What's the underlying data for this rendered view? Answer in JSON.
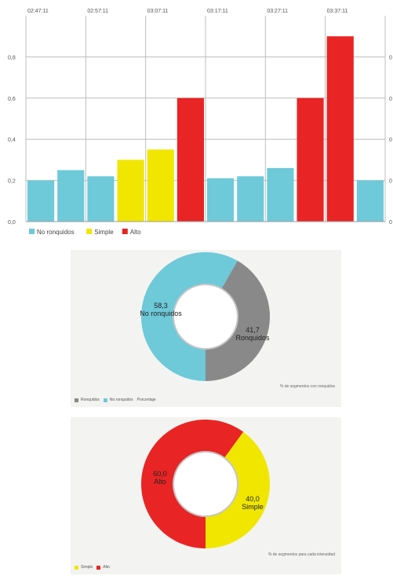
{
  "chart_data": [
    {
      "type": "bar",
      "time_labels": [
        "02:47:11",
        "02:57:11",
        "03:07:11",
        "03:17:11",
        "03:27:11",
        "03:37:11"
      ],
      "y_ticks": [
        "0,0",
        "0,2",
        "0,4",
        "0,6",
        "0,8"
      ],
      "ylim": [
        0,
        1
      ],
      "bars": [
        {
          "value": 0.2,
          "class": "No ronquidos"
        },
        {
          "value": 0.25,
          "class": "No ronquidos"
        },
        {
          "value": 0.22,
          "class": "No ronquidos"
        },
        {
          "value": 0.3,
          "class": "Simple"
        },
        {
          "value": 0.35,
          "class": "Simple"
        },
        {
          "value": 0.6,
          "class": "Alto"
        },
        {
          "value": 0.21,
          "class": "No ronquidos"
        },
        {
          "value": 0.22,
          "class": "No ronquidos"
        },
        {
          "value": 0.26,
          "class": "No ronquidos"
        },
        {
          "value": 0.6,
          "class": "Alto"
        },
        {
          "value": 0.9,
          "class": "Alto"
        },
        {
          "value": 0.2,
          "class": "No ronquidos"
        }
      ],
      "legend": [
        {
          "label": "No ronquidos",
          "color": "#6ec9d9"
        },
        {
          "label": "Simple",
          "color": "#f0e600"
        },
        {
          "label": "Alto",
          "color": "#e82424"
        }
      ],
      "grid": true,
      "legend_position": "bottom-left"
    },
    {
      "type": "pie",
      "variant": "donut",
      "slices": [
        {
          "name": "No ronquidos",
          "value": 58.3,
          "value_label": "58,3",
          "color": "#6ec9d9"
        },
        {
          "name": "Ronquidos",
          "value": 41.7,
          "value_label": "41,7",
          "color": "#898989"
        }
      ],
      "caption": "% de segmentos con ronquidos",
      "legend": [
        {
          "label": "Ronquidos",
          "color": "#898989"
        },
        {
          "label": "No ronquidos",
          "color": "#6ec9d9"
        }
      ],
      "legend_suffix": "Porcentaje"
    },
    {
      "type": "pie",
      "variant": "donut",
      "slices": [
        {
          "name": "Alto",
          "value": 60.0,
          "value_label": "60,0",
          "color": "#e82424"
        },
        {
          "name": "Simple",
          "value": 40.0,
          "value_label": "40,0",
          "color": "#f0e600"
        }
      ],
      "caption": "% de segmentos para cada intensidad",
      "legend": [
        {
          "label": "Simple",
          "color": "#f0e600"
        },
        {
          "label": "Alto",
          "color": "#e82424"
        }
      ]
    }
  ]
}
